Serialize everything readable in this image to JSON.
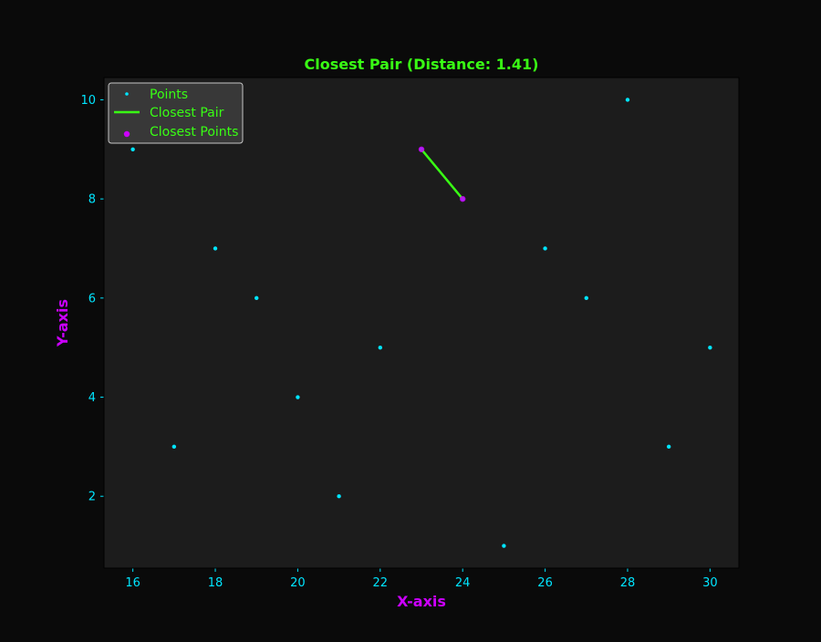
{
  "colors": {
    "figure_bg": "#0a0a0a",
    "axes_bg": "#1c1c1c",
    "accent_green": "#39ff14",
    "accent_cyan": "#00e5ff",
    "accent_magenta": "#cc00ff",
    "legend_bg": "#3a3a3a",
    "legend_border": "#d0d0d0"
  },
  "chart_data": {
    "type": "scatter",
    "title": "Closest Pair (Distance: 1.41)",
    "xlabel": "X-axis",
    "ylabel": "Y-axis",
    "xlim": [
      15.3,
      30.7
    ],
    "ylim": [
      0.55,
      10.45
    ],
    "x_ticks": [
      16,
      18,
      20,
      22,
      24,
      26,
      28,
      30
    ],
    "y_ticks": [
      2,
      4,
      6,
      8,
      10
    ],
    "grid": false,
    "legend_position": "top-left",
    "legend": [
      "Points",
      "Closest Pair",
      "Closest Points"
    ],
    "series": [
      {
        "name": "Points",
        "kind": "scatter",
        "color": "#00e5ff",
        "points": [
          [
            16,
            9
          ],
          [
            17,
            3
          ],
          [
            18,
            7
          ],
          [
            19,
            6
          ],
          [
            20,
            4
          ],
          [
            21,
            2
          ],
          [
            22,
            5
          ],
          [
            23,
            9
          ],
          [
            24,
            8
          ],
          [
            25,
            1
          ],
          [
            26,
            7
          ],
          [
            27,
            6
          ],
          [
            28,
            10
          ],
          [
            29,
            3
          ],
          [
            30,
            5
          ]
        ]
      },
      {
        "name": "Closest Pair",
        "kind": "line",
        "color": "#39ff14",
        "points": [
          [
            23,
            9
          ],
          [
            24,
            8
          ]
        ]
      },
      {
        "name": "Closest Points",
        "kind": "scatter",
        "color": "#cc00ff",
        "points": [
          [
            23,
            9
          ],
          [
            24,
            8
          ]
        ]
      }
    ]
  }
}
